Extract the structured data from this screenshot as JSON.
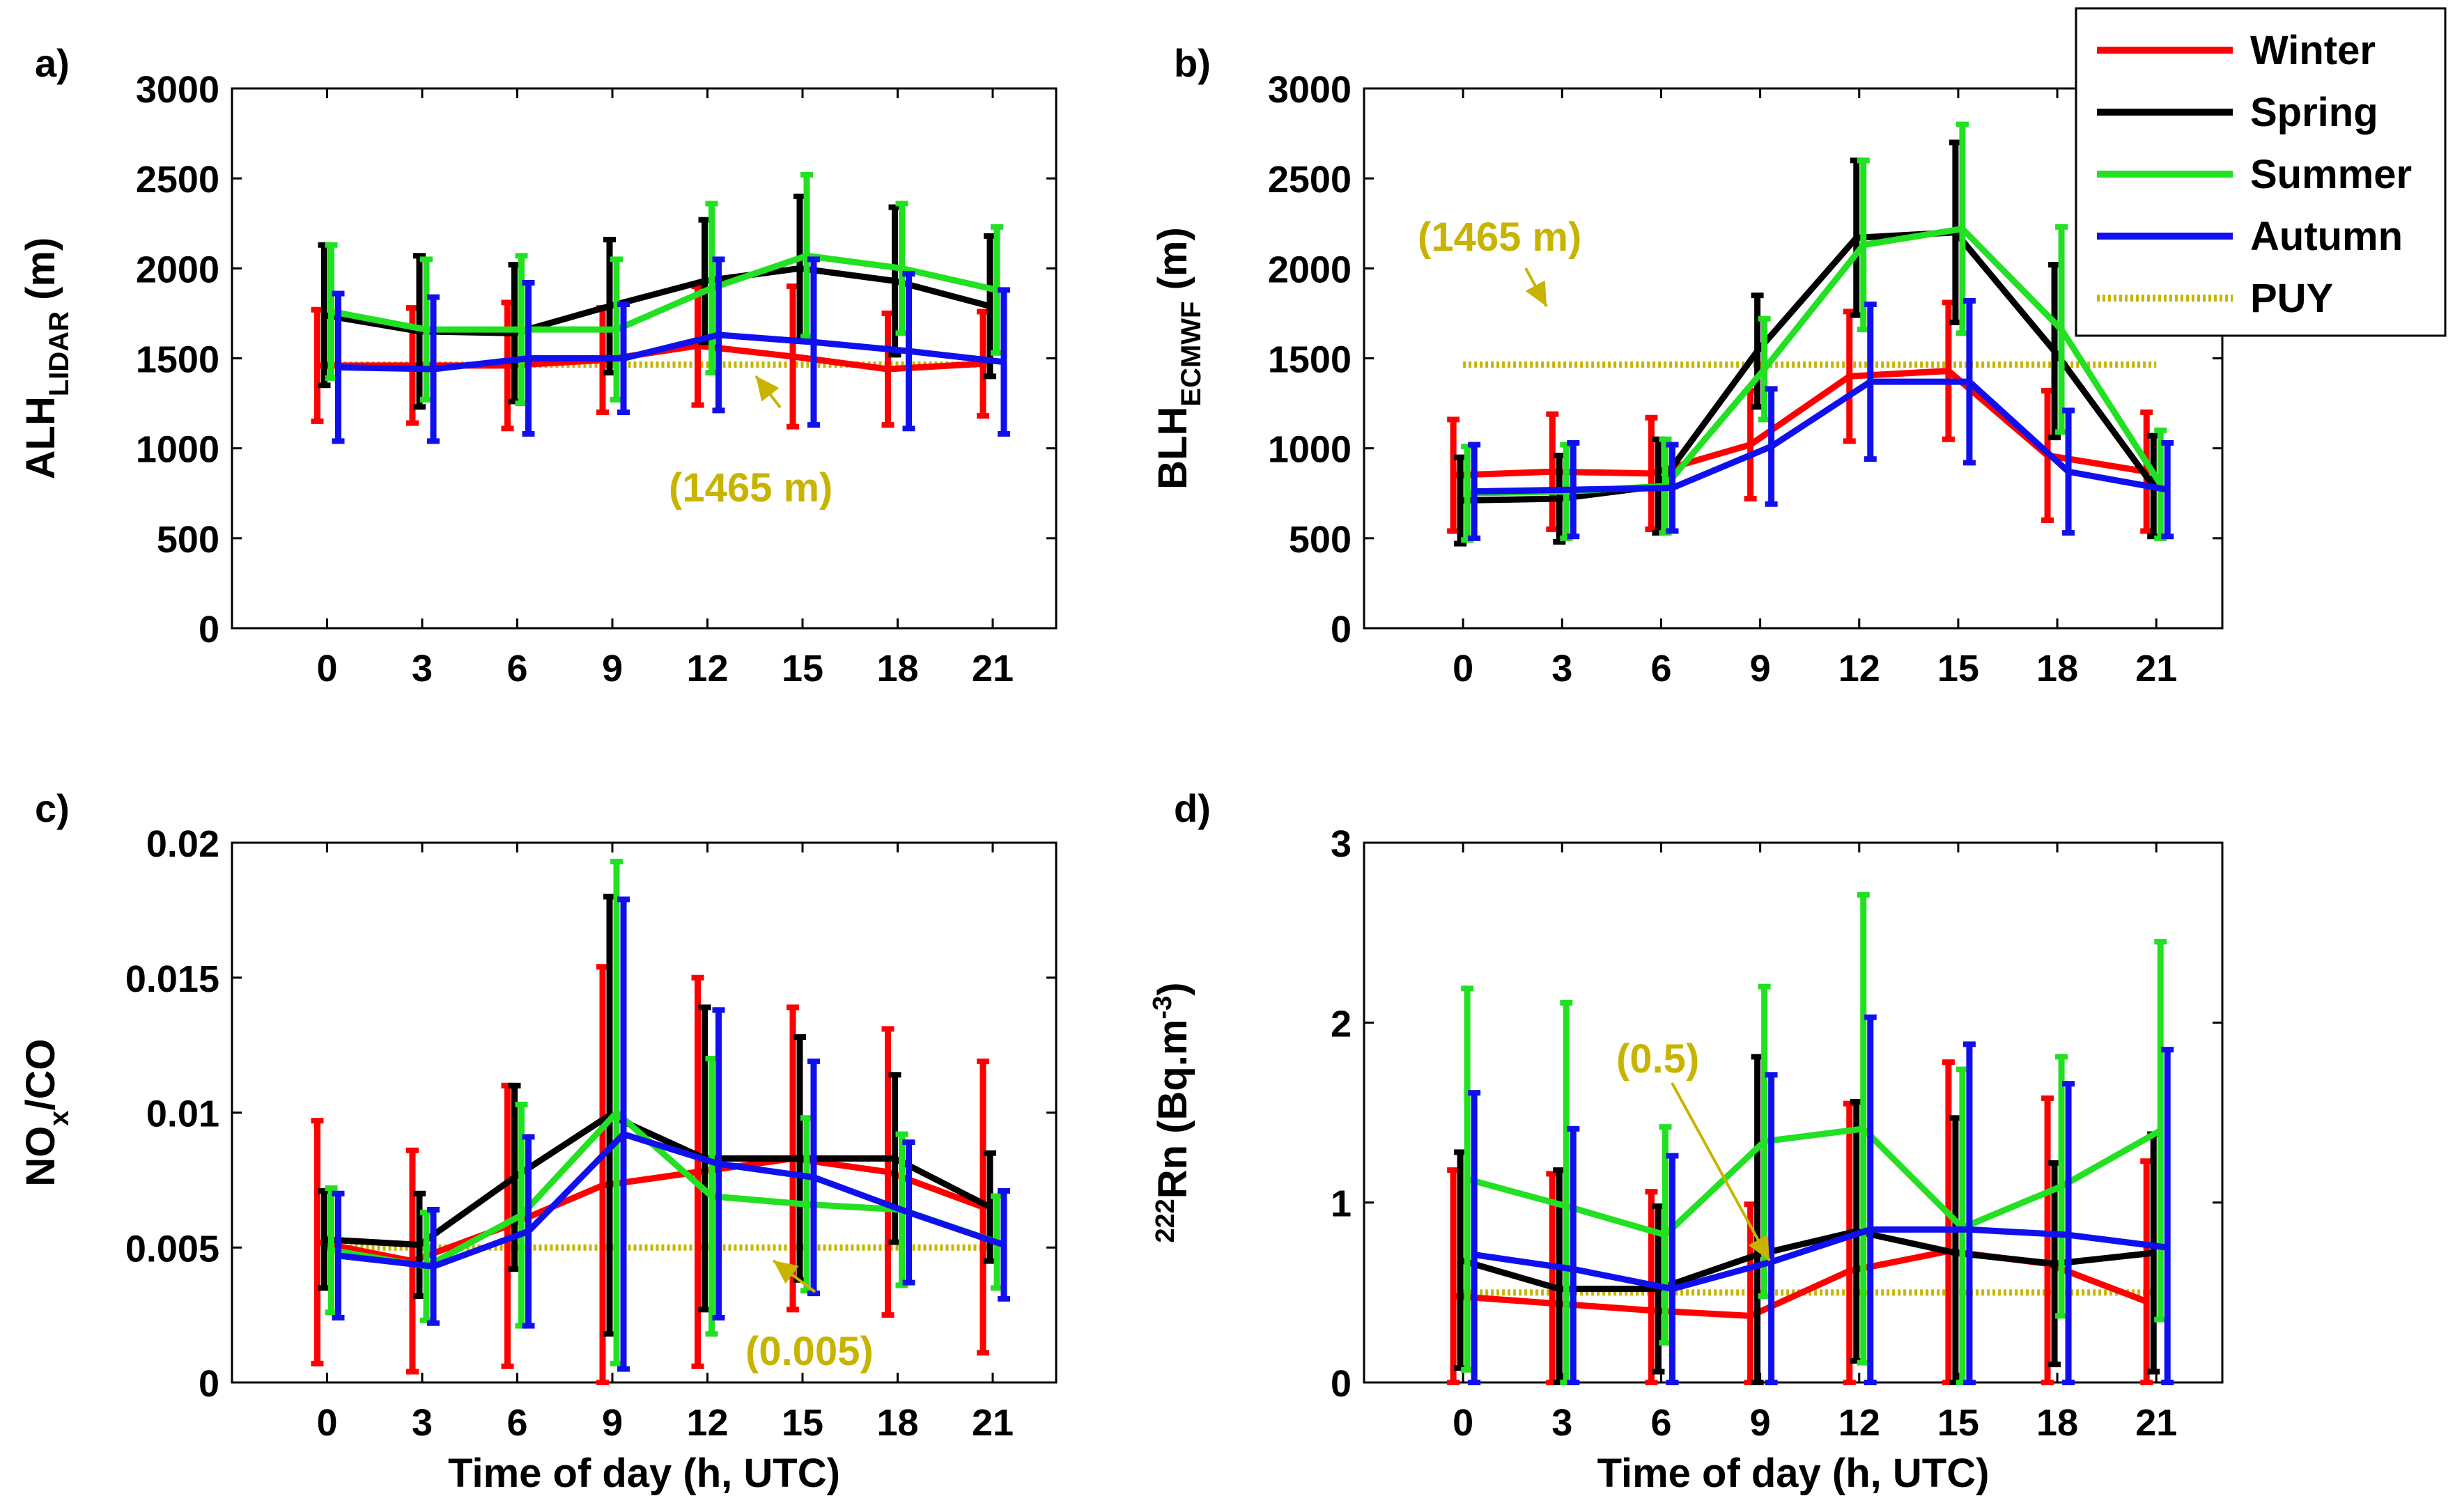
{
  "colors": {
    "Winter": "#ff0000",
    "Spring": "#000000",
    "Summer": "#22e022",
    "Autumn": "#1010ee",
    "PUY": "#c8b400"
  },
  "legend": {
    "entries": [
      {
        "label": "Winter",
        "color": "#ff0000",
        "dashed": false
      },
      {
        "label": "Spring",
        "color": "#000000",
        "dashed": false
      },
      {
        "label": "Summer",
        "color": "#22e022",
        "dashed": false
      },
      {
        "label": "Autumn",
        "color": "#1010ee",
        "dashed": false
      },
      {
        "label": "PUY",
        "color": "#c8b400",
        "dashed": true
      }
    ]
  },
  "chart_data": [
    {
      "panel": "a)",
      "type": "line",
      "ylabel": "ALH",
      "ylabel_sub": "LIDAR",
      "ylabel_unit": " (m)",
      "xlabel": "",
      "x": [
        0,
        3,
        6,
        9,
        12,
        15,
        18,
        21
      ],
      "xticks": [
        "0",
        "3",
        "6",
        "9",
        "12",
        "15",
        "18",
        "21"
      ],
      "ylim": [
        0,
        3000
      ],
      "yticks": [
        "0",
        "500",
        "1000",
        "1500",
        "2000",
        "2500",
        "3000"
      ],
      "ref_value": 1465,
      "annotation": "(1465  m)",
      "series": [
        {
          "name": "Winter",
          "values": [
            1460,
            1460,
            1460,
            1490,
            1570,
            1510,
            1440,
            1470
          ],
          "err": [
            310,
            320,
            350,
            290,
            330,
            390,
            310,
            290
          ]
        },
        {
          "name": "Spring",
          "values": [
            1740,
            1650,
            1640,
            1790,
            1930,
            2000,
            1930,
            1790
          ],
          "err": [
            390,
            420,
            380,
            370,
            340,
            400,
            410,
            390
          ]
        },
        {
          "name": "Summer",
          "values": [
            1760,
            1660,
            1660,
            1660,
            1890,
            2070,
            2000,
            1880
          ],
          "err": [
            370,
            390,
            410,
            390,
            470,
            450,
            360,
            350
          ]
        },
        {
          "name": "Autumn",
          "values": [
            1450,
            1440,
            1500,
            1500,
            1630,
            1590,
            1540,
            1480
          ],
          "err": [
            410,
            400,
            420,
            300,
            420,
            460,
            430,
            400
          ]
        }
      ]
    },
    {
      "panel": "b)",
      "type": "line",
      "ylabel": "BLH",
      "ylabel_sub": "ECMWF",
      "ylabel_unit": " (m)",
      "xlabel": "",
      "x": [
        0,
        3,
        6,
        9,
        12,
        15,
        18,
        21
      ],
      "xticks": [
        "0",
        "3",
        "6",
        "9",
        "12",
        "15",
        "18",
        "21"
      ],
      "ylim": [
        0,
        3000
      ],
      "yticks": [
        "0",
        "500",
        "1000",
        "1500",
        "2000",
        "2500",
        "3000"
      ],
      "ref_value": 1465,
      "annotation": "(1465 m)",
      "series": [
        {
          "name": "Winter",
          "values": [
            850,
            870,
            860,
            1020,
            1400,
            1430,
            960,
            870
          ],
          "err": [
            310,
            320,
            310,
            300,
            360,
            380,
            360,
            330
          ]
        },
        {
          "name": "Spring",
          "values": [
            710,
            720,
            790,
            1540,
            2170,
            2200,
            1540,
            790
          ],
          "err": [
            240,
            240,
            260,
            310,
            430,
            500,
            480,
            280
          ]
        },
        {
          "name": "Summer",
          "values": [
            750,
            760,
            790,
            1440,
            2130,
            2220,
            1660,
            800
          ],
          "err": [
            260,
            260,
            260,
            280,
            470,
            580,
            570,
            300
          ]
        },
        {
          "name": "Autumn",
          "values": [
            760,
            770,
            780,
            1010,
            1370,
            1370,
            870,
            770
          ],
          "err": [
            260,
            260,
            240,
            320,
            430,
            450,
            340,
            260
          ]
        }
      ]
    },
    {
      "panel": "c)",
      "type": "line",
      "ylabel": "NO",
      "ylabel_sub": "x",
      "ylabel_unit": "/CO",
      "xlabel": "Time of day (h, UTC)",
      "x": [
        0,
        3,
        6,
        9,
        12,
        15,
        18,
        21
      ],
      "xticks": [
        "0",
        "3",
        "6",
        "9",
        "12",
        "15",
        "18",
        "21"
      ],
      "ylim": [
        0,
        0.02
      ],
      "yticks": [
        "0",
        "0.005",
        "0.01",
        "0.015",
        "0.02"
      ],
      "ref_value": 0.005,
      "annotation": "(0.005)",
      "series": [
        {
          "name": "Winter",
          "values": [
            0.0052,
            0.0045,
            0.0058,
            0.0073,
            0.0078,
            0.0083,
            0.0078,
            0.0065
          ],
          "err": [
            0.0045,
            0.0041,
            0.0052,
            0.0081,
            0.0072,
            0.0056,
            0.0053,
            0.0054
          ]
        },
        {
          "name": "Spring",
          "values": [
            0.0053,
            0.0051,
            0.0076,
            0.0099,
            0.0083,
            0.0083,
            0.0083,
            0.0065
          ],
          "err": [
            0.0018,
            0.0019,
            0.0034,
            0.0081,
            0.0056,
            0.0045,
            0.0031,
            0.002
          ]
        },
        {
          "name": "Summer",
          "values": [
            0.0049,
            0.0043,
            0.0062,
            0.01,
            0.0069,
            0.0066,
            0.0064,
            0.0052
          ],
          "err": [
            0.0023,
            0.002,
            0.0041,
            0.0093,
            0.0051,
            0.0032,
            0.0028,
            0.0017
          ]
        },
        {
          "name": "Autumn",
          "values": [
            0.0047,
            0.0043,
            0.0056,
            0.0092,
            0.0081,
            0.0076,
            0.0063,
            0.0051
          ],
          "err": [
            0.0023,
            0.0021,
            0.0035,
            0.0087,
            0.0057,
            0.0043,
            0.0026,
            0.002
          ]
        }
      ]
    },
    {
      "panel": "d)",
      "type": "line",
      "ylabel": "Rn (Bq.m",
      "ylabel_sup": "222",
      "ylabel_exp": "-3",
      "ylabel_close": ")",
      "xlabel": "Time of day (h, UTC)",
      "x": [
        0,
        3,
        6,
        9,
        12,
        15,
        18,
        21
      ],
      "xticks": [
        "0",
        "3",
        "6",
        "9",
        "12",
        "15",
        "18",
        "21"
      ],
      "ylim": [
        0,
        3
      ],
      "yticks": [
        "0",
        "1",
        "2",
        "3"
      ],
      "ref_value": 0.5,
      "annotation": "(0.5)",
      "series": [
        {
          "name": "Winter",
          "values": [
            0.48,
            0.44,
            0.4,
            0.37,
            0.62,
            0.73,
            0.66,
            0.45
          ],
          "err": [
            0.7,
            0.72,
            0.66,
            0.62,
            0.93,
            1.05,
            0.92,
            0.78
          ]
        },
        {
          "name": "Spring",
          "values": [
            0.68,
            0.52,
            0.52,
            0.71,
            0.84,
            0.72,
            0.66,
            0.72
          ],
          "err": [
            0.6,
            0.66,
            0.46,
            1.1,
            0.72,
            0.75,
            0.56,
            0.66
          ]
        },
        {
          "name": "Summer",
          "values": [
            1.13,
            0.98,
            0.82,
            1.34,
            1.41,
            0.86,
            1.09,
            1.4
          ],
          "err": [
            1.06,
            1.13,
            0.6,
            0.86,
            1.3,
            0.88,
            0.72,
            1.05
          ]
        },
        {
          "name": "Autumn",
          "values": [
            0.71,
            0.63,
            0.52,
            0.67,
            0.85,
            0.85,
            0.82,
            0.75
          ],
          "err": [
            0.9,
            0.78,
            0.74,
            1.04,
            1.18,
            1.03,
            0.84,
            1.1
          ]
        }
      ]
    }
  ]
}
